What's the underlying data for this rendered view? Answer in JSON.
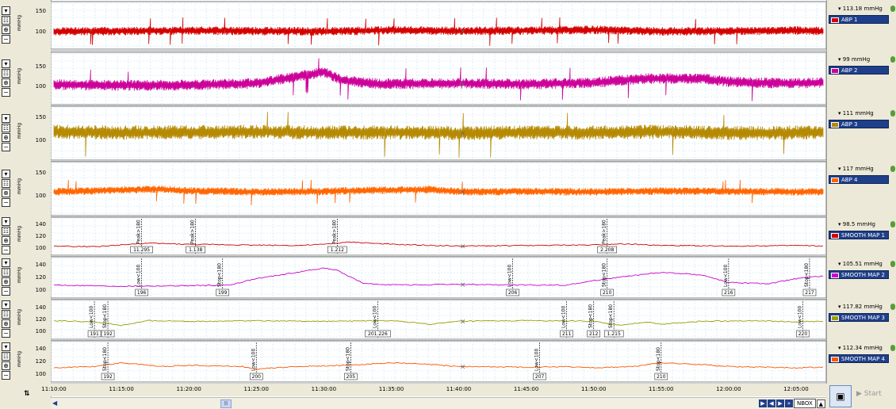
{
  "chart_data": {
    "type": "line",
    "x_tick_labels": [
      "11:10:00",
      "11:15:00",
      "11:20:00",
      "11:25:00",
      "11:30:00",
      "11:35:00",
      "11:40:00",
      "11:45:00",
      "11:50:00",
      "11:55:00",
      "12:00:00",
      "12:05:00"
    ],
    "xlim": [
      "11:10:00",
      "12:07:00"
    ],
    "grid": true,
    "panels": [
      {
        "name": "ABP 1",
        "value_label": "113.18 mmHg",
        "color": "#d40000",
        "ylim": [
          60,
          170
        ],
        "yticks": [
          "150",
          "100"
        ],
        "series": [
          {
            "x": 0,
            "y": 100
          },
          {
            "x": 5,
            "y": 101
          },
          {
            "x": 10,
            "y": 102
          },
          {
            "x": 15,
            "y": 101
          },
          {
            "x": 20,
            "y": 100
          },
          {
            "x": 25,
            "y": 103
          },
          {
            "x": 30,
            "y": 101
          },
          {
            "x": 35,
            "y": 102
          },
          {
            "x": 40,
            "y": 104
          },
          {
            "x": 45,
            "y": 100
          },
          {
            "x": 50,
            "y": 101
          },
          {
            "x": 55,
            "y": 102
          },
          {
            "x": 57,
            "y": 101
          }
        ],
        "noise": 9,
        "status": "#5a9b3a"
      },
      {
        "name": "ABP 2",
        "value_label": "99 mmHg",
        "color": "#cc0099",
        "ylim": [
          60,
          180
        ],
        "yticks": [
          "150",
          "100"
        ],
        "series": [
          {
            "x": 0,
            "y": 105
          },
          {
            "x": 5,
            "y": 103
          },
          {
            "x": 10,
            "y": 104
          },
          {
            "x": 15,
            "y": 108
          },
          {
            "x": 18,
            "y": 125
          },
          {
            "x": 20,
            "y": 135
          },
          {
            "x": 21.5,
            "y": 115
          },
          {
            "x": 24,
            "y": 107
          },
          {
            "x": 30,
            "y": 108
          },
          {
            "x": 35,
            "y": 106
          },
          {
            "x": 40,
            "y": 110
          },
          {
            "x": 44,
            "y": 120
          },
          {
            "x": 48,
            "y": 120
          },
          {
            "x": 50,
            "y": 112
          },
          {
            "x": 54,
            "y": 108
          },
          {
            "x": 57,
            "y": 110
          }
        ],
        "noise": 11,
        "status": "#5a9b3a"
      },
      {
        "name": "ABP 3",
        "value_label": "111 mmHg",
        "color": "#b58900",
        "ylim": [
          60,
          170
        ],
        "yticks": [
          "150",
          "100"
        ],
        "series": [
          {
            "x": 0,
            "y": 118
          },
          {
            "x": 5,
            "y": 116
          },
          {
            "x": 10,
            "y": 117
          },
          {
            "x": 15,
            "y": 118
          },
          {
            "x": 20,
            "y": 116
          },
          {
            "x": 25,
            "y": 117
          },
          {
            "x": 30,
            "y": 115
          },
          {
            "x": 35,
            "y": 117
          },
          {
            "x": 40,
            "y": 116
          },
          {
            "x": 45,
            "y": 118
          },
          {
            "x": 50,
            "y": 115
          },
          {
            "x": 55,
            "y": 116
          },
          {
            "x": 57,
            "y": 117
          }
        ],
        "noise": 13,
        "status": "#5a9b3a"
      },
      {
        "name": "ABP 4",
        "value_label": "117 mmHg",
        "color": "#ff6600",
        "ylim": [
          60,
          170
        ],
        "yticks": [
          "150",
          "100"
        ],
        "series": [
          {
            "x": 0,
            "y": 108
          },
          {
            "x": 5,
            "y": 112
          },
          {
            "x": 8,
            "y": 114
          },
          {
            "x": 10,
            "y": 110
          },
          {
            "x": 15,
            "y": 108
          },
          {
            "x": 20,
            "y": 109
          },
          {
            "x": 25,
            "y": 112
          },
          {
            "x": 28,
            "y": 113
          },
          {
            "x": 30,
            "y": 108
          },
          {
            "x": 35,
            "y": 109
          },
          {
            "x": 40,
            "y": 108
          },
          {
            "x": 45,
            "y": 110
          },
          {
            "x": 50,
            "y": 109
          },
          {
            "x": 55,
            "y": 108
          },
          {
            "x": 57,
            "y": 109
          }
        ],
        "noise": 7,
        "status": "#5a9b3a"
      },
      {
        "name": "SMOOTH MAP 1",
        "value_label": "98.5 mmHg",
        "color": "#d40000",
        "ylim": [
          90,
          150
        ],
        "yticks": [
          "140",
          "120",
          "100"
        ],
        "series": [
          {
            "x": 0,
            "y": 103
          },
          {
            "x": 3,
            "y": 102
          },
          {
            "x": 5,
            "y": 105
          },
          {
            "x": 7,
            "y": 108
          },
          {
            "x": 10,
            "y": 106
          },
          {
            "x": 14,
            "y": 105
          },
          {
            "x": 18,
            "y": 104
          },
          {
            "x": 20,
            "y": 106
          },
          {
            "x": 22,
            "y": 110
          },
          {
            "x": 25,
            "y": 106
          },
          {
            "x": 30,
            "y": 103
          },
          {
            "x": 35,
            "y": 104
          },
          {
            "x": 40,
            "y": 105
          },
          {
            "x": 42,
            "y": 107
          },
          {
            "x": 45,
            "y": 104
          },
          {
            "x": 50,
            "y": 103
          },
          {
            "x": 55,
            "y": 104
          },
          {
            "x": 57,
            "y": 103
          }
        ],
        "noise": 0,
        "status": "#5a9b3a",
        "markers": [
          {
            "x": 6.5,
            "text": "Peak>180",
            "box": "11.295"
          },
          {
            "x": 10.5,
            "text": "Peak>180",
            "box": "1.138"
          },
          {
            "x": 21,
            "text": "Peak>180",
            "box": "1.212"
          },
          {
            "x": 41,
            "text": "Peak>180",
            "box": "2.208"
          }
        ]
      },
      {
        "name": "SMOOTH MAP 2",
        "value_label": "105.51 mmHg",
        "color": "#cc00cc",
        "ylim": [
          90,
          150
        ],
        "yticks": [
          "140",
          "120",
          "100"
        ],
        "series": [
          {
            "x": 0,
            "y": 108
          },
          {
            "x": 5,
            "y": 106
          },
          {
            "x": 10,
            "y": 107
          },
          {
            "x": 13,
            "y": 108
          },
          {
            "x": 15,
            "y": 118
          },
          {
            "x": 18,
            "y": 128
          },
          {
            "x": 20,
            "y": 135
          },
          {
            "x": 21,
            "y": 131
          },
          {
            "x": 23,
            "y": 110
          },
          {
            "x": 26,
            "y": 108
          },
          {
            "x": 30,
            "y": 109
          },
          {
            "x": 34,
            "y": 108
          },
          {
            "x": 38,
            "y": 108
          },
          {
            "x": 41,
            "y": 118
          },
          {
            "x": 45,
            "y": 128
          },
          {
            "x": 48,
            "y": 124
          },
          {
            "x": 50,
            "y": 112
          },
          {
            "x": 53,
            "y": 110
          },
          {
            "x": 55,
            "y": 118
          },
          {
            "x": 57,
            "y": 122
          }
        ],
        "noise": 0,
        "status": "#5a9b3a",
        "markers": [
          {
            "x": 6.5,
            "text": "Low<100",
            "box": "196"
          },
          {
            "x": 12.5,
            "text": "Stop<180",
            "box": "199"
          },
          {
            "x": 34,
            "text": "Low<100",
            "box": "206"
          },
          {
            "x": 41,
            "text": "Stop<180",
            "box": "210"
          },
          {
            "x": 50,
            "text": "Low<100",
            "box": "216"
          },
          {
            "x": 56,
            "text": "Stop<180",
            "box": "217"
          }
        ]
      },
      {
        "name": "SMOOTH MAP 3",
        "value_label": "117.82 mmHg",
        "color": "#99a000",
        "ylim": [
          90,
          150
        ],
        "yticks": [
          "140",
          "120",
          "100"
        ],
        "series": [
          {
            "x": 0,
            "y": 118
          },
          {
            "x": 3,
            "y": 116
          },
          {
            "x": 5,
            "y": 110
          },
          {
            "x": 7,
            "y": 118
          },
          {
            "x": 10,
            "y": 117
          },
          {
            "x": 15,
            "y": 118
          },
          {
            "x": 20,
            "y": 117
          },
          {
            "x": 25,
            "y": 118
          },
          {
            "x": 28,
            "y": 112
          },
          {
            "x": 30,
            "y": 117
          },
          {
            "x": 35,
            "y": 118
          },
          {
            "x": 40,
            "y": 117
          },
          {
            "x": 42,
            "y": 110
          },
          {
            "x": 44,
            "y": 116
          },
          {
            "x": 45,
            "y": 112
          },
          {
            "x": 48,
            "y": 117
          },
          {
            "x": 52,
            "y": 118
          },
          {
            "x": 55,
            "y": 116
          },
          {
            "x": 57,
            "y": 117
          }
        ],
        "noise": 0,
        "status": "#5a9b3a",
        "markers": [
          {
            "x": 3,
            "text": "Low<100",
            "box": "191"
          },
          {
            "x": 4,
            "text": "Stop<180",
            "box": "192"
          },
          {
            "x": 24,
            "text": "Low<100",
            "box": "201.226"
          },
          {
            "x": 38,
            "text": "Low<100",
            "box": "211"
          },
          {
            "x": 40,
            "text": "Stop<180",
            "box": "212"
          },
          {
            "x": 41.5,
            "text": "Stop<180",
            "box": "1.215"
          },
          {
            "x": 55.5,
            "text": "Low<100",
            "box": "220"
          }
        ]
      },
      {
        "name": "SMOOTH MAP 4",
        "value_label": "112.34 mmHg",
        "color": "#ff5500",
        "ylim": [
          90,
          150
        ],
        "yticks": [
          "140",
          "120",
          "100"
        ],
        "series": [
          {
            "x": 0,
            "y": 110
          },
          {
            "x": 3,
            "y": 112
          },
          {
            "x": 5,
            "y": 118
          },
          {
            "x": 8,
            "y": 112
          },
          {
            "x": 10,
            "y": 114
          },
          {
            "x": 14,
            "y": 112
          },
          {
            "x": 15,
            "y": 108
          },
          {
            "x": 18,
            "y": 112
          },
          {
            "x": 22,
            "y": 114
          },
          {
            "x": 25,
            "y": 118
          },
          {
            "x": 28,
            "y": 115
          },
          {
            "x": 30,
            "y": 112
          },
          {
            "x": 35,
            "y": 111
          },
          {
            "x": 38,
            "y": 112
          },
          {
            "x": 40,
            "y": 110
          },
          {
            "x": 43,
            "y": 112
          },
          {
            "x": 45,
            "y": 118
          },
          {
            "x": 48,
            "y": 115
          },
          {
            "x": 50,
            "y": 112
          },
          {
            "x": 55,
            "y": 110
          },
          {
            "x": 57,
            "y": 111
          }
        ],
        "noise": 0,
        "status": "#5a9b3a",
        "markers": [
          {
            "x": 4,
            "text": "Stop<180",
            "box": "192"
          },
          {
            "x": 15,
            "text": "Low<100",
            "box": "200"
          },
          {
            "x": 22,
            "text": "Stop<180",
            "box": "205"
          },
          {
            "x": 36,
            "text": "Low<100",
            "box": "207"
          },
          {
            "x": 45,
            "text": "Stop<180",
            "box": "210"
          }
        ]
      }
    ]
  },
  "ui": {
    "y_unit_text": "mmHg",
    "corner_icon": "cursor-icon",
    "nav_box_value": "NBOX",
    "start_label": "Start",
    "cursor_marker": "×"
  }
}
